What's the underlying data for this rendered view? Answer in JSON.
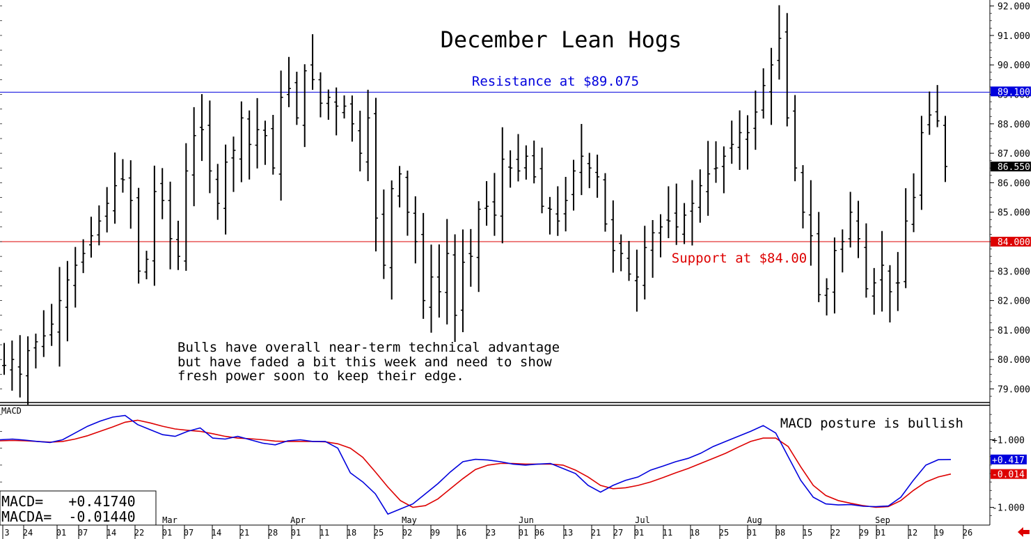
{
  "chart_data": [
    {
      "type": "ohlc",
      "title": "December Lean Hogs",
      "y_axis_side": "right",
      "ylim": [
        78.5,
        92.2
      ],
      "y_ticks": [
        "79.000",
        "80.000",
        "81.000",
        "82.000",
        "83.000",
        "84.000",
        "85.000",
        "86.000",
        "87.000",
        "88.000",
        "89.000",
        "90.000",
        "91.000",
        "92.000"
      ],
      "price_badges": [
        {
          "label": "89.100",
          "value": 89.1,
          "color": "#0000dd"
        },
        {
          "label": "86.550",
          "value": 86.55,
          "color": "#000000"
        },
        {
          "label": "84.000",
          "value": 84.0,
          "color": "#dd0000"
        }
      ],
      "horizontal_lines": [
        {
          "label": "Resistance at $89.075",
          "value": 89.075,
          "color": "#0000dd"
        },
        {
          "label": "Support at $84.00",
          "value": 84.0,
          "color": "#dd0000"
        }
      ],
      "annotation": "Bulls have overall near-term technical advantage\nbut have faded a bit this week and need to show\nfresh power soon to keep their edge.",
      "approx_closes": [
        79.8,
        80.0,
        79.5,
        80.3,
        80.6,
        80.8,
        81.2,
        82.0,
        82.7,
        83.2,
        83.6,
        84.2,
        84.7,
        85.3,
        85.9,
        86.1,
        85.4,
        83.0,
        83.4,
        85.7,
        85.4,
        84.1,
        83.5,
        86.4,
        87.6,
        87.8,
        86.4,
        85.3,
        86.7,
        87.1,
        88.2,
        87.3,
        87.8,
        87.6,
        86.5,
        88.9,
        89.2,
        88.2,
        89.8,
        89.5,
        88.7,
        88.9,
        88.6,
        88.6,
        88.0,
        87.0,
        88.2,
        84.8,
        83.2,
        85.8,
        86.3,
        85.0,
        84.0,
        82.0,
        82.8,
        82.3,
        83.6,
        81.5,
        83.3,
        83.5,
        85.1,
        85.2,
        84.9,
        86.8,
        86.5,
        86.4,
        86.9,
        86.2,
        85.2,
        85.1,
        84.7,
        85.4,
        86.4,
        86.9,
        86.5,
        86.2,
        84.6,
        83.7,
        83.6,
        82.9,
        82.8,
        83.8,
        84.3,
        84.5,
        84.7,
        84.5,
        84.9,
        85.3,
        85.9,
        86.3,
        86.5,
        86.9,
        87.3,
        87.7,
        87.7,
        88.4,
        89.3,
        90.0,
        90.9,
        88.2,
        86.5,
        85.0,
        84.2,
        82.2,
        82.4,
        83.7,
        84.0,
        85.0,
        84.1,
        82.4,
        82.6,
        83.2,
        82.3,
        82.6,
        84.7,
        85.5,
        87.7,
        88.3,
        88.1,
        86.55
      ],
      "x_months": [
        "Mar",
        "Apr",
        "May",
        "Jun",
        "Jul",
        "Aug",
        "Sep"
      ],
      "x_days": [
        "3",
        "24",
        "01",
        "07",
        "14",
        "22",
        "01",
        "07",
        "14",
        "21",
        "28",
        "01",
        "11",
        "18",
        "25",
        "02",
        "09",
        "16",
        "23",
        "01",
        "06",
        "13",
        "21",
        "27",
        "01",
        "11",
        "18",
        "25",
        "01",
        "08",
        "15",
        "22",
        "29",
        "01",
        "12",
        "19",
        "26"
      ]
    },
    {
      "type": "line",
      "label": "MACD",
      "annotation": "MACD posture is bullish",
      "y_ticks": [
        "+1.000",
        "-1.000"
      ],
      "ylim": [
        -1.4,
        2.1
      ],
      "legend": [
        "MACD=   +0.41740",
        "MACDA=  -0.01440"
      ],
      "badges": [
        {
          "label": "+0.417",
          "value": 0.417,
          "color": "#0000dd"
        },
        {
          "label": "-0.014",
          "value": -0.014,
          "color": "#dd0000"
        }
      ],
      "series": [
        {
          "name": "MACD",
          "color": "#0000dd",
          "values": [
            1.0,
            1.02,
            0.99,
            0.95,
            0.92,
            1.0,
            1.2,
            1.4,
            1.55,
            1.67,
            1.72,
            1.45,
            1.3,
            1.15,
            1.1,
            1.25,
            1.35,
            1.05,
            1.02,
            1.1,
            1.0,
            0.9,
            0.85,
            0.97,
            1.0,
            0.95,
            0.95,
            0.75,
            0.02,
            -0.25,
            -0.6,
            -1.2,
            -1.05,
            -0.9,
            -0.6,
            -0.3,
            0.05,
            0.35,
            0.42,
            0.4,
            0.35,
            0.28,
            0.25,
            0.28,
            0.3,
            0.15,
            0.0,
            -0.35,
            -0.55,
            -0.35,
            -0.2,
            -0.1,
            0.1,
            0.22,
            0.35,
            0.45,
            0.6,
            0.8,
            0.95,
            1.1,
            1.25,
            1.42,
            1.2,
            0.5,
            -0.2,
            -0.7,
            -0.9,
            -0.93,
            -0.92,
            -0.97,
            -0.98,
            -0.96,
            -0.7,
            -0.2,
            0.25,
            0.41,
            0.417
          ]
        },
        {
          "name": "MACDA",
          "color": "#dd0000",
          "values": [
            0.97,
            0.98,
            0.97,
            0.95,
            0.93,
            0.95,
            1.02,
            1.12,
            1.25,
            1.38,
            1.52,
            1.58,
            1.5,
            1.4,
            1.32,
            1.28,
            1.25,
            1.18,
            1.1,
            1.05,
            1.03,
            1.0,
            0.96,
            0.95,
            0.95,
            0.95,
            0.94,
            0.88,
            0.75,
            0.48,
            0.05,
            -0.4,
            -0.8,
            -1.0,
            -0.95,
            -0.75,
            -0.45,
            -0.15,
            0.12,
            0.25,
            0.3,
            0.3,
            0.28,
            0.28,
            0.28,
            0.25,
            0.1,
            -0.1,
            -0.35,
            -0.45,
            -0.42,
            -0.35,
            -0.25,
            -0.12,
            0.02,
            0.15,
            0.3,
            0.45,
            0.6,
            0.78,
            0.95,
            1.05,
            1.05,
            0.8,
            0.2,
            -0.35,
            -0.65,
            -0.8,
            -0.88,
            -0.95,
            -1.0,
            -0.98,
            -0.8,
            -0.5,
            -0.25,
            -0.1,
            -0.014
          ]
        }
      ]
    }
  ]
}
